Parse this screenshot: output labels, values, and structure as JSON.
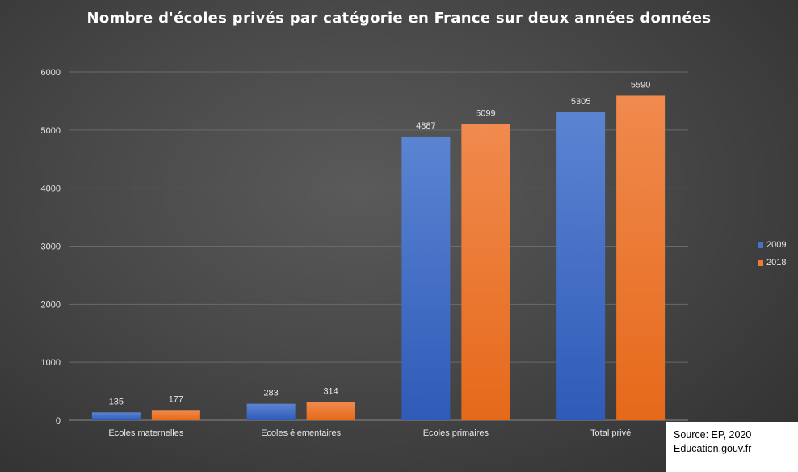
{
  "chart_data": {
    "type": "bar",
    "title": "Nombre d'écoles privés par catégorie en France sur deux années données",
    "categories": [
      "Ecoles maternelles",
      "Ecoles élementaires",
      "Ecoles primaires",
      "Total privé"
    ],
    "series": [
      {
        "name": "2009",
        "values": [
          135,
          283,
          4887,
          5305
        ],
        "color": "#4472c4"
      },
      {
        "name": "2018",
        "values": [
          177,
          314,
          5099,
          5590
        ],
        "color": "#ed7d31"
      }
    ],
    "ylim": [
      0,
      6000
    ],
    "yticks": [
      0,
      1000,
      2000,
      3000,
      4000,
      5000,
      6000
    ],
    "xlabel": "",
    "ylabel": "",
    "grid": true,
    "legend_position": "right"
  },
  "source": {
    "line1": "Source: EP, 2020",
    "line2": "Education.gouv.fr"
  }
}
